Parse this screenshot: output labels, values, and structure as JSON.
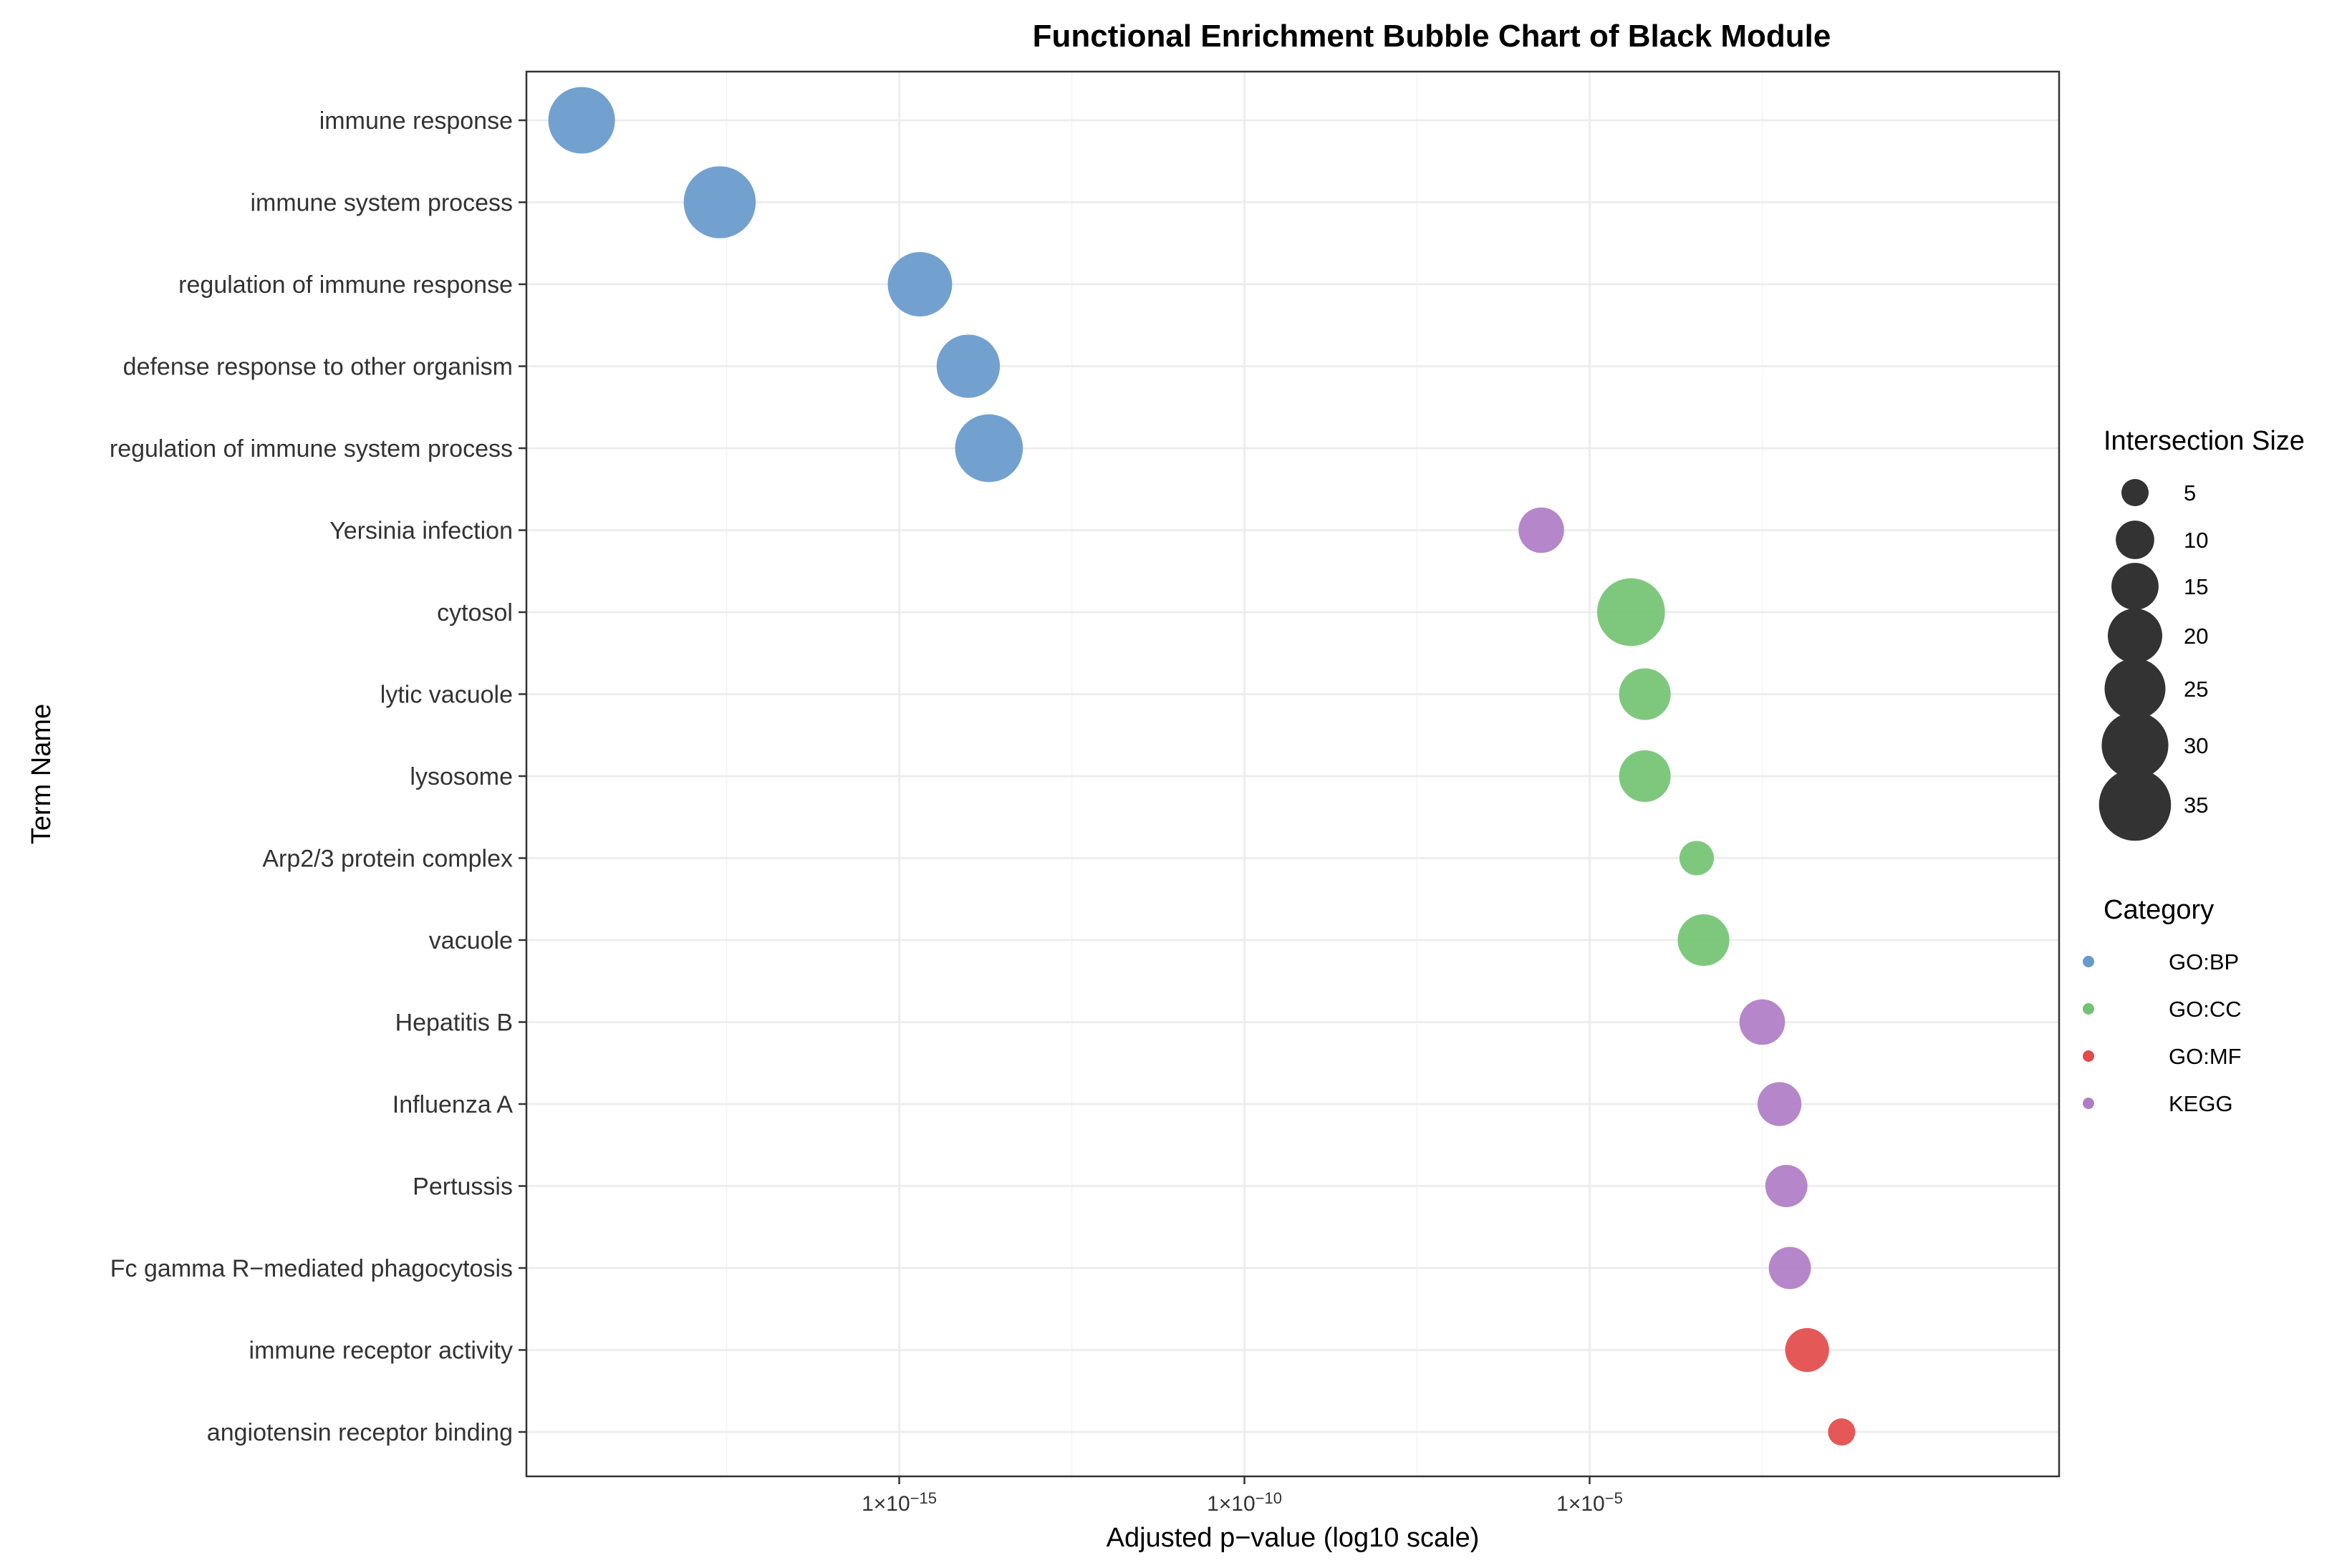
{
  "chart_data": {
    "type": "scatter",
    "title": "Functional Enrichment Bubble Chart of Black Module",
    "xlabel": "Adjusted p−value (log10 scale)",
    "ylabel": "Term Name",
    "x_scale": "log10",
    "xlim_log10": [
      -20.4,
      1.8
    ],
    "x_ticks": [
      {
        "log10": -15,
        "base": "1×10",
        "exp": "−15"
      },
      {
        "log10": -10,
        "base": "1×10",
        "exp": "−10"
      },
      {
        "log10": -5,
        "base": "1×10",
        "exp": "−5"
      }
    ],
    "grid": true,
    "categories": [
      {
        "name": "GO:BP",
        "color": "#6699cc"
      },
      {
        "name": "GO:CC",
        "color": "#73c373"
      },
      {
        "name": "GO:MF",
        "color": "#e34a4a"
      },
      {
        "name": "KEGG",
        "color": "#b07cc6"
      }
    ],
    "size_legend": {
      "title": "Intersection Size",
      "values": [
        5,
        10,
        15,
        20,
        25,
        30,
        35
      ]
    },
    "category_legend_title": "Category",
    "points": [
      {
        "term": "immune response",
        "log10_p": -19.6,
        "size": 30,
        "category": "GO:BP"
      },
      {
        "term": "immune system process",
        "log10_p": -17.6,
        "size": 35,
        "category": "GO:BP"
      },
      {
        "term": "regulation of immune response",
        "log10_p": -14.7,
        "size": 28,
        "category": "GO:BP"
      },
      {
        "term": "defense response to other organism",
        "log10_p": -14.0,
        "size": 27,
        "category": "GO:BP"
      },
      {
        "term": "regulation of immune system process",
        "log10_p": -13.7,
        "size": 31,
        "category": "GO:BP"
      },
      {
        "term": "Yersinia infection",
        "log10_p": -5.7,
        "size": 14,
        "category": "KEGG"
      },
      {
        "term": "cytosol",
        "log10_p": -4.4,
        "size": 31,
        "category": "GO:CC"
      },
      {
        "term": "lytic vacuole",
        "log10_p": -4.2,
        "size": 18,
        "category": "GO:CC"
      },
      {
        "term": "lysosome",
        "log10_p": -4.2,
        "size": 18,
        "category": "GO:CC"
      },
      {
        "term": "Arp2/3 protein complex",
        "log10_p": -3.45,
        "size": 8,
        "category": "GO:CC"
      },
      {
        "term": "vacuole",
        "log10_p": -3.35,
        "size": 18,
        "category": "GO:CC"
      },
      {
        "term": "Hepatitis B",
        "log10_p": -2.5,
        "size": 14,
        "category": "KEGG"
      },
      {
        "term": "Influenza A",
        "log10_p": -2.25,
        "size": 13,
        "category": "KEGG"
      },
      {
        "term": "Pertussis",
        "log10_p": -2.15,
        "size": 12,
        "category": "KEGG"
      },
      {
        "term": "Fc gamma R−mediated phagocytosis",
        "log10_p": -2.1,
        "size": 12,
        "category": "KEGG"
      },
      {
        "term": "immune receptor activity",
        "log10_p": -1.85,
        "size": 13,
        "category": "GO:MF"
      },
      {
        "term": "angiotensin receptor binding",
        "log10_p": -1.35,
        "size": 5,
        "category": "GO:MF"
      }
    ]
  }
}
